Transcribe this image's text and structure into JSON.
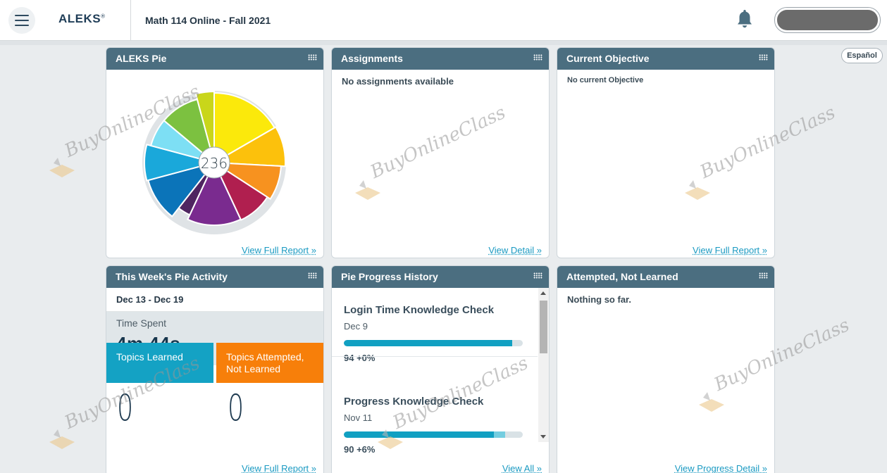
{
  "header": {
    "logo": "ALEKS",
    "logo_mark": "®",
    "course_title": "Math 114 Online - Fall 2021",
    "language_button": "Español"
  },
  "aleks_pie": {
    "title": "ALEKS Pie",
    "center_count": "236",
    "link": "View Full Report »"
  },
  "assignments": {
    "title": "Assignments",
    "message": "No assignments available",
    "link": "View Detail »"
  },
  "current_objective": {
    "title": "Current Objective",
    "message": "No current Objective",
    "link": "View Full Report »"
  },
  "week_activity": {
    "title": "This Week's Pie Activity",
    "range": "Dec 13 - Dec 19",
    "time_label": "Time Spent",
    "time_value": "4m 44s",
    "learned_label": "Topics Learned",
    "learned_value": "0",
    "attempted_label": "Topics Attempted, Not Learned",
    "attempted_value": "0",
    "link": "View Full Report »",
    "colors": {
      "learned": "#14a2c4",
      "attempted": "#f77f0a"
    }
  },
  "progress_history": {
    "title": "Pie Progress History",
    "items": [
      {
        "title": "Login Time Knowledge Check",
        "date": "Dec 9",
        "score": "94 +0%",
        "progress": 0.94,
        "gain": 0.0
      },
      {
        "title": "Progress Knowledge Check",
        "date": "Nov 11",
        "score": "90 +6%",
        "progress": 0.9,
        "gain": 0.06
      }
    ],
    "link": "View All »"
  },
  "attempted_not_learned": {
    "title": "Attempted, Not Learned",
    "message": "Nothing so far.",
    "link": "View Progress Detail »"
  },
  "watermark": "BuyOnlineClass",
  "icons": [
    "menu-icon",
    "bell-icon",
    "grip-icon"
  ]
}
